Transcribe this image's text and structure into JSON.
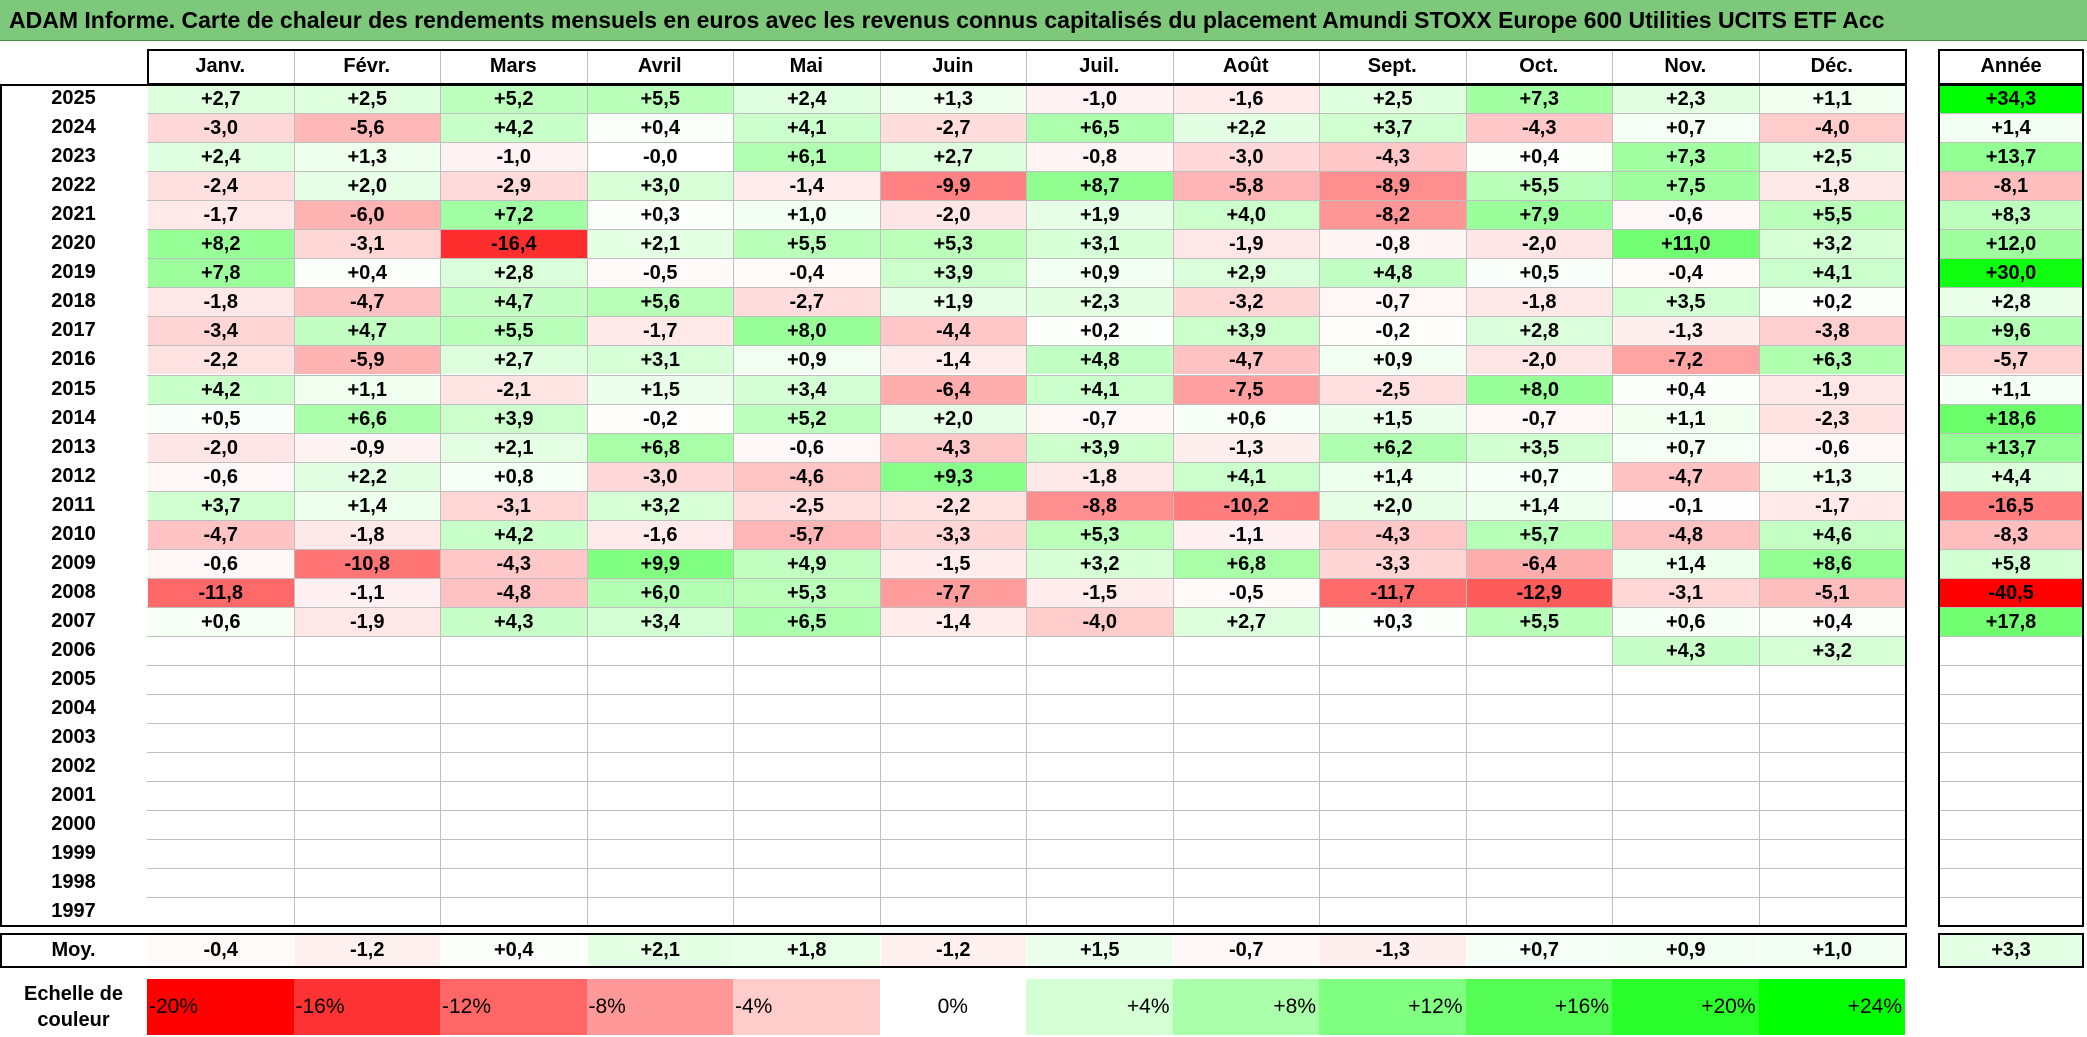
{
  "title": "ADAM Informe. Carte de chaleur des rendements mensuels en euros avec les revenus connus capitalisés du placement Amundi STOXX Europe 600 Utilities UCITS ETF Acc",
  "chart_data": {
    "type": "heatmap",
    "title": "ADAM Informe. Carte de chaleur des rendements mensuels en euros avec les revenus connus capitalisés du placement Amundi STOXX Europe 600 Utilities UCITS ETF Acc",
    "columns": [
      "Janv.",
      "Févr.",
      "Mars",
      "Avril",
      "Mai",
      "Juin",
      "Juil.",
      "Août",
      "Sept.",
      "Oct.",
      "Nov.",
      "Déc."
    ],
    "year_header": "Année",
    "rows": [
      {
        "year": "2025",
        "values": [
          "+2,7",
          "+2,5",
          "+5,2",
          "+5,5",
          "+2,4",
          "+1,3",
          "-1,0",
          "-1,6",
          "+2,5",
          "+7,3",
          "+2,3",
          "+1,1"
        ],
        "annual": "+34,3"
      },
      {
        "year": "2024",
        "values": [
          "-3,0",
          "-5,6",
          "+4,2",
          "+0,4",
          "+4,1",
          "-2,7",
          "+6,5",
          "+2,2",
          "+3,7",
          "-4,3",
          "+0,7",
          "-4,0"
        ],
        "annual": "+1,4"
      },
      {
        "year": "2023",
        "values": [
          "+2,4",
          "+1,3",
          "-1,0",
          "-0,0",
          "+6,1",
          "+2,7",
          "-0,8",
          "-3,0",
          "-4,3",
          "+0,4",
          "+7,3",
          "+2,5"
        ],
        "annual": "+13,7"
      },
      {
        "year": "2022",
        "values": [
          "-2,4",
          "+2,0",
          "-2,9",
          "+3,0",
          "-1,4",
          "-9,9",
          "+8,7",
          "-5,8",
          "-8,9",
          "+5,5",
          "+7,5",
          "-1,8"
        ],
        "annual": "-8,1"
      },
      {
        "year": "2021",
        "values": [
          "-1,7",
          "-6,0",
          "+7,2",
          "+0,3",
          "+1,0",
          "-2,0",
          "+1,9",
          "+4,0",
          "-8,2",
          "+7,9",
          "-0,6",
          "+5,5"
        ],
        "annual": "+8,3"
      },
      {
        "year": "2020",
        "values": [
          "+8,2",
          "-3,1",
          "-16,4",
          "+2,1",
          "+5,5",
          "+5,3",
          "+3,1",
          "-1,9",
          "-0,8",
          "-2,0",
          "+11,0",
          "+3,2"
        ],
        "annual": "+12,0"
      },
      {
        "year": "2019",
        "values": [
          "+7,8",
          "+0,4",
          "+2,8",
          "-0,5",
          "-0,4",
          "+3,9",
          "+0,9",
          "+2,9",
          "+4,8",
          "+0,5",
          "-0,4",
          "+4,1"
        ],
        "annual": "+30,0"
      },
      {
        "year": "2018",
        "values": [
          "-1,8",
          "-4,7",
          "+4,7",
          "+5,6",
          "-2,7",
          "+1,9",
          "+2,3",
          "-3,2",
          "-0,7",
          "-1,8",
          "+3,5",
          "+0,2"
        ],
        "annual": "+2,8"
      },
      {
        "year": "2017",
        "values": [
          "-3,4",
          "+4,7",
          "+5,5",
          "-1,7",
          "+8,0",
          "-4,4",
          "+0,2",
          "+3,9",
          "-0,2",
          "+2,8",
          "-1,3",
          "-3,8"
        ],
        "annual": "+9,6"
      },
      {
        "year": "2016",
        "values": [
          "-2,2",
          "-5,9",
          "+2,7",
          "+3,1",
          "+0,9",
          "-1,4",
          "+4,8",
          "-4,7",
          "+0,9",
          "-2,0",
          "-7,2",
          "+6,3"
        ],
        "annual": "-5,7"
      },
      {
        "year": "2015",
        "values": [
          "+4,2",
          "+1,1",
          "-2,1",
          "+1,5",
          "+3,4",
          "-6,4",
          "+4,1",
          "-7,5",
          "-2,5",
          "+8,0",
          "+0,4",
          "-1,9"
        ],
        "annual": "+1,1"
      },
      {
        "year": "2014",
        "values": [
          "+0,5",
          "+6,6",
          "+3,9",
          "-0,2",
          "+5,2",
          "+2,0",
          "-0,7",
          "+0,6",
          "+1,5",
          "-0,7",
          "+1,1",
          "-2,3"
        ],
        "annual": "+18,6"
      },
      {
        "year": "2013",
        "values": [
          "-2,0",
          "-0,9",
          "+2,1",
          "+6,8",
          "-0,6",
          "-4,3",
          "+3,9",
          "-1,3",
          "+6,2",
          "+3,5",
          "+0,7",
          "-0,6"
        ],
        "annual": "+13,7"
      },
      {
        "year": "2012",
        "values": [
          "-0,6",
          "+2,2",
          "+0,8",
          "-3,0",
          "-4,6",
          "+9,3",
          "-1,8",
          "+4,1",
          "+1,4",
          "+0,7",
          "-4,7",
          "+1,3"
        ],
        "annual": "+4,4"
      },
      {
        "year": "2011",
        "values": [
          "+3,7",
          "+1,4",
          "-3,1",
          "+3,2",
          "-2,5",
          "-2,2",
          "-8,8",
          "-10,2",
          "+2,0",
          "+1,4",
          "-0,1",
          "-1,7"
        ],
        "annual": "-16,5"
      },
      {
        "year": "2010",
        "values": [
          "-4,7",
          "-1,8",
          "+4,2",
          "-1,6",
          "-5,7",
          "-3,3",
          "+5,3",
          "-1,1",
          "-4,3",
          "+5,7",
          "-4,8",
          "+4,6"
        ],
        "annual": "-8,3"
      },
      {
        "year": "2009",
        "values": [
          "-0,6",
          "-10,8",
          "-4,3",
          "+9,9",
          "+4,9",
          "-1,5",
          "+3,2",
          "+6,8",
          "-3,3",
          "-6,4",
          "+1,4",
          "+8,6"
        ],
        "annual": "+5,8"
      },
      {
        "year": "2008",
        "values": [
          "-11,8",
          "-1,1",
          "-4,8",
          "+6,0",
          "+5,3",
          "-7,7",
          "-1,5",
          "-0,5",
          "-11,7",
          "-12,9",
          "-3,1",
          "-5,1"
        ],
        "annual": "-40,5"
      },
      {
        "year": "2007",
        "values": [
          "+0,6",
          "-1,9",
          "+4,3",
          "+3,4",
          "+6,5",
          "-1,4",
          "-4,0",
          "+2,7",
          "+0,3",
          "+5,5",
          "+0,6",
          "+0,4"
        ],
        "annual": "+17,8"
      },
      {
        "year": "2006",
        "values": [
          "",
          "",
          "",
          "",
          "",
          "",
          "",
          "",
          "",
          "",
          "+4,3",
          "+3,2"
        ],
        "annual": ""
      },
      {
        "year": "2005",
        "values": [
          "",
          "",
          "",
          "",
          "",
          "",
          "",
          "",
          "",
          "",
          "",
          ""
        ],
        "annual": ""
      },
      {
        "year": "2004",
        "values": [
          "",
          "",
          "",
          "",
          "",
          "",
          "",
          "",
          "",
          "",
          "",
          ""
        ],
        "annual": ""
      },
      {
        "year": "2003",
        "values": [
          "",
          "",
          "",
          "",
          "",
          "",
          "",
          "",
          "",
          "",
          "",
          ""
        ],
        "annual": ""
      },
      {
        "year": "2002",
        "values": [
          "",
          "",
          "",
          "",
          "",
          "",
          "",
          "",
          "",
          "",
          "",
          ""
        ],
        "annual": ""
      },
      {
        "year": "2001",
        "values": [
          "",
          "",
          "",
          "",
          "",
          "",
          "",
          "",
          "",
          "",
          "",
          ""
        ],
        "annual": ""
      },
      {
        "year": "2000",
        "values": [
          "",
          "",
          "",
          "",
          "",
          "",
          "",
          "",
          "",
          "",
          "",
          ""
        ],
        "annual": ""
      },
      {
        "year": "1999",
        "values": [
          "",
          "",
          "",
          "",
          "",
          "",
          "",
          "",
          "",
          "",
          "",
          ""
        ],
        "annual": ""
      },
      {
        "year": "1998",
        "values": [
          "",
          "",
          "",
          "",
          "",
          "",
          "",
          "",
          "",
          "",
          "",
          ""
        ],
        "annual": ""
      },
      {
        "year": "1997",
        "values": [
          "",
          "",
          "",
          "",
          "",
          "",
          "",
          "",
          "",
          "",
          "",
          ""
        ],
        "annual": ""
      }
    ],
    "average": {
      "label": "Moy.",
      "values": [
        "-0,4",
        "-1,2",
        "+0,4",
        "+2,1",
        "+1,8",
        "-1,2",
        "+1,5",
        "-0,7",
        "-1,3",
        "+0,7",
        "+0,9",
        "+1,0"
      ],
      "annual": "+3,3"
    },
    "scale": {
      "label_line1": "Echelle de",
      "label_line2": "couleur",
      "steps": [
        {
          "label": "-20%",
          "value": -20
        },
        {
          "label": "-16%",
          "value": -16
        },
        {
          "label": "-12%",
          "value": -12
        },
        {
          "label": "-8%",
          "value": -8
        },
        {
          "label": "-4%",
          "value": -4
        },
        {
          "label": "0%",
          "value": 0
        },
        {
          "label": "+4%",
          "value": 4
        },
        {
          "label": "+8%",
          "value": 8
        },
        {
          "label": "+12%",
          "value": 12
        },
        {
          "label": "+16%",
          "value": 16
        },
        {
          "label": "+20%",
          "value": 20
        },
        {
          "label": "+24%",
          "value": 24
        }
      ]
    },
    "colors": {
      "negative_max": "#ff0000",
      "neutral": "#ffffff",
      "positive_max": "#00ff00",
      "title_bg": "#7dc87a"
    }
  }
}
